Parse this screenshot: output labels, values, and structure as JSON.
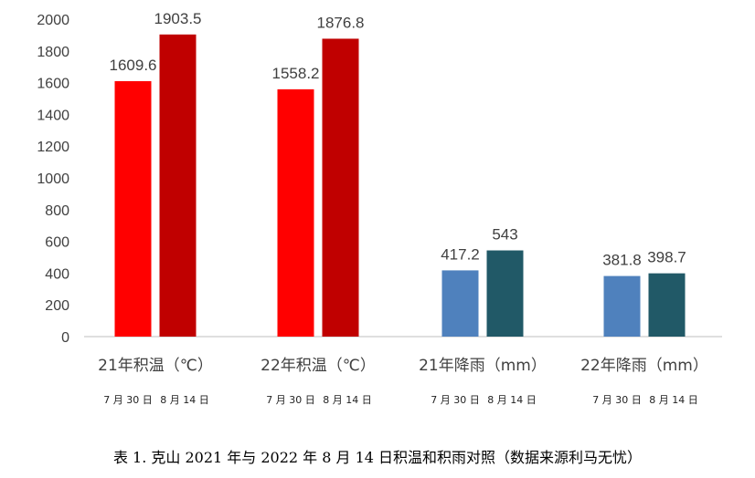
{
  "chart_data": {
    "type": "bar",
    "categories": [
      "21年积温（℃）",
      "22年积温（℃）",
      "21年降雨（mm）",
      "22年降雨（mm）"
    ],
    "series": [
      {
        "values": [
          1609.6,
          1558.2,
          417.2,
          381.8
        ]
      },
      {
        "values": [
          1903.5,
          1876.8,
          543,
          398.7
        ]
      }
    ],
    "sublabels": [
      "7 月 30 日",
      "8 月 14 日"
    ],
    "data_labels": [
      [
        "1609.6",
        "1558.2",
        "417.2",
        "381.8"
      ],
      [
        "1903.5",
        "1876.8",
        "543",
        "398.7"
      ]
    ],
    "yticks": [
      "0",
      "200",
      "400",
      "600",
      "800",
      "1000",
      "1200",
      "1400",
      "1600",
      "1800",
      "2000"
    ],
    "ylim": [
      0,
      2000
    ],
    "colors": {
      "temp_first": "#ff0000",
      "temp_second": "#c00000",
      "rain_first": "#4f81bd",
      "rain_second": "#215967"
    },
    "grid": false,
    "legend": "none"
  },
  "caption": "表 1. 克山 2021 年与 2022 年 8 月 14 日积温和积雨对照（数据来源利马无忧）"
}
